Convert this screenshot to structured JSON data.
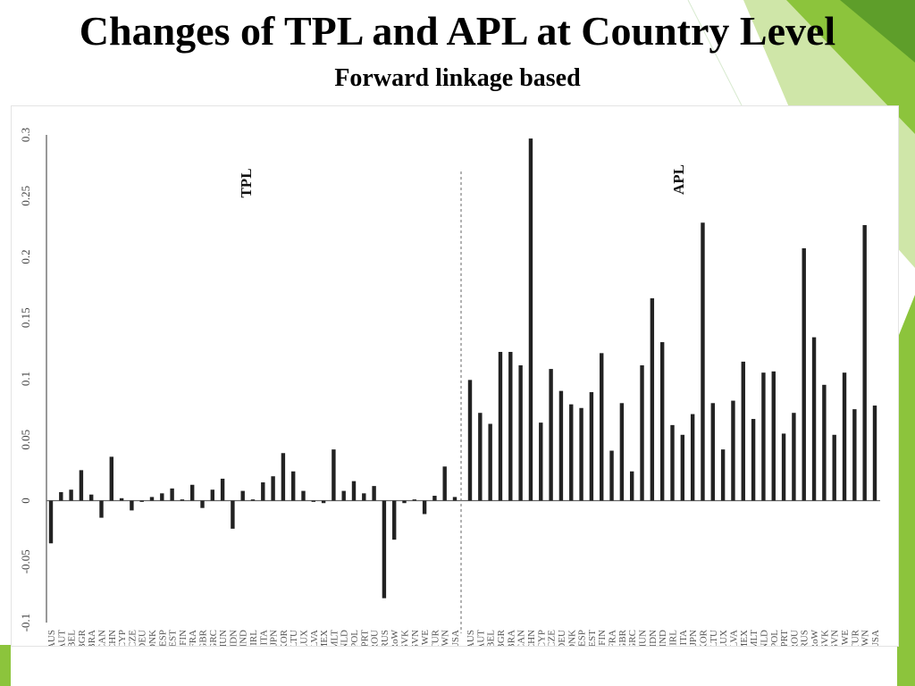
{
  "slide": {
    "title": "Changes of TPL and APL at Country Level",
    "subtitle": "Forward linkage based"
  },
  "colors": {
    "bar": "#222222",
    "accent_green": "#8cc43c",
    "accent_dark_green": "#5e9e2a"
  },
  "chart_data": {
    "type": "bar",
    "title": "",
    "xlabel": "",
    "ylabel": "",
    "ylim": [
      -0.1,
      0.3
    ],
    "yticks": [
      "-0.1",
      "-0.05",
      "0",
      "0.05",
      "0.1",
      "0.15",
      "0.2",
      "0.25",
      "0.3"
    ],
    "grid": false,
    "legend": "none",
    "panels": [
      {
        "name": "TPL",
        "categories": [
          "AUS",
          "AUT",
          "BEL",
          "BGR",
          "BRA",
          "CAN",
          "CHN",
          "CYP",
          "CZE",
          "DEU",
          "DNK",
          "ESP",
          "EST",
          "FIN",
          "FRA",
          "GBR",
          "GRC",
          "HUN",
          "IDN",
          "IND",
          "IRL",
          "ITA",
          "JPN",
          "KOR",
          "LTU",
          "LUX",
          "LVA",
          "MEX",
          "MLT",
          "NLD",
          "POL",
          "PRT",
          "ROU",
          "RUS",
          "RoW",
          "SVK",
          "SVN",
          "SWE",
          "TUR",
          "TWN",
          "USA"
        ],
        "values": [
          -0.035,
          0.007,
          0.009,
          0.025,
          0.005,
          -0.014,
          0.036,
          0.002,
          -0.008,
          -0.001,
          0.003,
          0.006,
          0.01,
          0.001,
          0.013,
          -0.006,
          0.009,
          0.018,
          -0.023,
          0.008,
          0.001,
          0.015,
          0.02,
          0.039,
          0.024,
          0.008,
          -0.001,
          -0.002,
          0.042,
          0.008,
          0.016,
          0.006,
          0.012,
          -0.08,
          -0.032,
          -0.002,
          0.001,
          -0.011,
          0.004,
          0.028,
          0.003
        ]
      },
      {
        "name": "APL",
        "categories": [
          "AUS",
          "AUT",
          "BEL",
          "BGR",
          "BRA",
          "CAN",
          "CHN",
          "CYP",
          "CZE",
          "DEU",
          "DNK",
          "ESP",
          "EST",
          "FIN",
          "FRA",
          "GBR",
          "GRC",
          "HUN",
          "IDN",
          "IND",
          "IRL",
          "ITA",
          "JPN",
          "KOR",
          "LTU",
          "LUX",
          "LVA",
          "MEX",
          "MLT",
          "NLD",
          "POL",
          "PRT",
          "ROU",
          "RUS",
          "RoW",
          "SVK",
          "SVN",
          "SWE",
          "TUR",
          "TWN",
          "USA"
        ],
        "values": [
          0.099,
          0.072,
          0.063,
          0.122,
          0.122,
          0.111,
          0.297,
          0.064,
          0.108,
          0.09,
          0.079,
          0.076,
          0.089,
          0.121,
          0.041,
          0.08,
          0.024,
          0.111,
          0.166,
          0.13,
          0.062,
          0.054,
          0.071,
          0.228,
          0.08,
          0.042,
          0.082,
          0.114,
          0.067,
          0.105,
          0.106,
          0.055,
          0.072,
          0.207,
          0.134,
          0.095,
          0.054,
          0.105,
          0.075,
          0.226,
          0.078
        ]
      }
    ]
  }
}
